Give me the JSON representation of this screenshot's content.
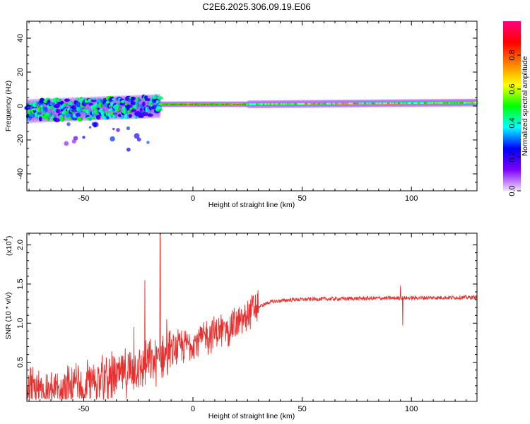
{
  "title": "C2E6.2025.306.09.19.E06",
  "chart_data": [
    {
      "type": "heatmap",
      "name": "spectrogram",
      "xlabel": "Height of straight line (km)",
      "ylabel": "Frequency (Hz)",
      "xlim": [
        -76,
        130
      ],
      "ylim": [
        -50,
        50
      ],
      "xticks": [
        -50,
        0,
        50,
        100
      ],
      "yticks": [
        -40,
        -20,
        0,
        20,
        40
      ],
      "colorbar": {
        "label": "Normalized spectral amplitude",
        "range": [
          0,
          1
        ],
        "ticks": [
          "0.0",
          "0.2",
          "0.4",
          "0.6",
          "0.8"
        ],
        "colors": [
          "#f2e0f7",
          "#7b00ff",
          "#0000ff",
          "#00ffff",
          "#00ff00",
          "#ffff00",
          "#ff7f00",
          "#ff0000",
          "#ff007f"
        ]
      },
      "segments": [
        {
          "x0": -76,
          "x1": -15,
          "freq_start": -3,
          "freq_end": 0,
          "amplitude": 0.35,
          "spread_hz": 12,
          "note": "scattered blobs"
        },
        {
          "x0": -15,
          "x1": 25,
          "freq_start": 1,
          "freq_end": 1,
          "amplitude": 0.9,
          "spread_hz": 3
        },
        {
          "x0": 25,
          "x1": 130,
          "freq_start": 1,
          "freq_end": 2,
          "amplitude": 0.75,
          "spread_hz": 4
        }
      ]
    },
    {
      "type": "line",
      "name": "snr",
      "xlabel": "Height of straight line (km)",
      "ylabel": "SNR (10 * v/v)",
      "y_multiplier": "(x10",
      "y_multiplier_exp": "4",
      "xlim": [
        -76,
        130
      ],
      "ylim": [
        0,
        2.15
      ],
      "xticks": [
        -50,
        0,
        50,
        100
      ],
      "yticks": [
        0.5,
        1.0,
        1.5,
        2.0
      ],
      "ytick_labels": [
        "0.5",
        "1.0",
        "1.5",
        "2.0"
      ],
      "color": "#e8302e",
      "trend": [
        [
          -76,
          0.15
        ],
        [
          -65,
          0.12
        ],
        [
          -55,
          0.18
        ],
        [
          -45,
          0.25
        ],
        [
          -35,
          0.32
        ],
        [
          -25,
          0.42
        ],
        [
          -15,
          0.55
        ],
        [
          -5,
          0.7
        ],
        [
          5,
          0.82
        ],
        [
          15,
          0.92
        ],
        [
          22,
          1.02
        ],
        [
          28,
          1.18
        ],
        [
          35,
          1.27
        ],
        [
          45,
          1.3
        ],
        [
          60,
          1.31
        ],
        [
          90,
          1.32
        ],
        [
          130,
          1.33
        ]
      ],
      "spikes": [
        {
          "x": -22,
          "value": 1.55
        },
        {
          "x": -15,
          "value": 2.15
        },
        {
          "x": -27,
          "value": 0.95
        },
        {
          "x": -12,
          "value": 1.05
        },
        {
          "x": 95,
          "value": 1.48
        },
        {
          "x": 96,
          "value": 0.97
        }
      ]
    }
  ]
}
